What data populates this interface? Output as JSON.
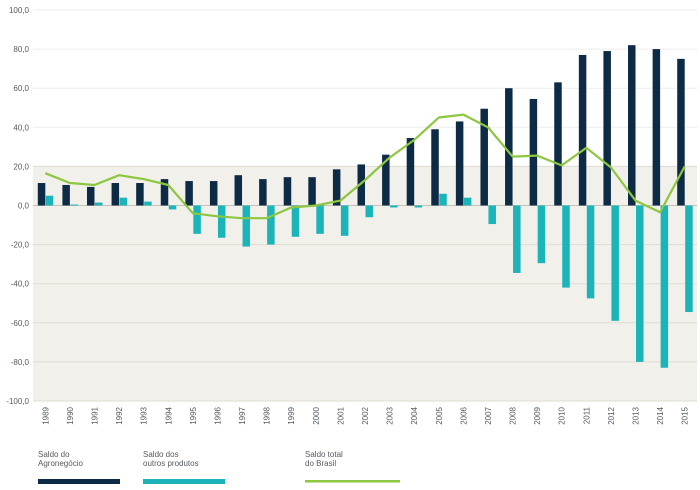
{
  "chart_data": {
    "type": "bar",
    "title": "",
    "xlabel": "",
    "ylabel": "",
    "ylim": [
      -100,
      100
    ],
    "ytick_labels": [
      "100,0",
      "80,0",
      "60,0",
      "40,0",
      "20,0",
      "0,0",
      "-20,0",
      "-40,0",
      "-60,0",
      "-80,0",
      "-100,0"
    ],
    "ytick_values": [
      100,
      80,
      60,
      40,
      20,
      0,
      -20,
      -40,
      -60,
      -80,
      -100
    ],
    "grid": true,
    "legend_position": "bottom",
    "categories": [
      "1989",
      "1990",
      "1991",
      "1992",
      "1993",
      "1994",
      "1995",
      "1996",
      "1997",
      "1998",
      "1999",
      "2000",
      "2001",
      "2002",
      "2003",
      "2004",
      "2005",
      "2006",
      "2007",
      "2008",
      "2009",
      "2010",
      "2011",
      "2012",
      "2013",
      "2014",
      "2015"
    ],
    "series": [
      {
        "name_lines": [
          "Saldo do",
          "Agronegócio"
        ],
        "type": "bar",
        "color": "#0d2b45",
        "values": [
          11.5,
          10.5,
          9.5,
          11.5,
          11.5,
          13.5,
          12.5,
          12.5,
          15.5,
          13.5,
          14.5,
          14.5,
          18.5,
          21,
          26,
          34.5,
          39,
          43,
          49.5,
          60,
          54.5,
          63,
          77,
          79,
          82,
          80,
          75
        ]
      },
      {
        "name_lines": [
          "Saldo dos",
          "outros produtos"
        ],
        "type": "bar",
        "color": "#1bb4b8",
        "values": [
          5,
          0.5,
          1.5,
          4,
          2,
          -2,
          -14.5,
          -16.5,
          -21,
          -20,
          -16,
          -14.5,
          -15.5,
          -6,
          -1,
          -1,
          6,
          4,
          -9.5,
          -34.5,
          -29.5,
          -42,
          -47.5,
          -59,
          -80,
          -83,
          -54.5
        ]
      },
      {
        "name_lines": [
          "Saldo total",
          "do Brasil"
        ],
        "type": "line",
        "color": "#8dc63f",
        "values": [
          16.5,
          11.5,
          10.5,
          15.5,
          13.5,
          10.5,
          -4,
          -5.5,
          -6.5,
          -6.5,
          -1,
          0,
          2.5,
          13,
          24.5,
          33.5,
          45,
          46.5,
          40,
          25,
          25.5,
          20.5,
          29.5,
          19.5,
          2.5,
          -3.5,
          20
        ]
      }
    ],
    "colors": {
      "plot_band": "#f2f0eb",
      "grid_light": "#e0dcd3",
      "grid_on_white": "#eeeeee",
      "baseline": "#c7c2b8",
      "text": "#555a60"
    }
  }
}
